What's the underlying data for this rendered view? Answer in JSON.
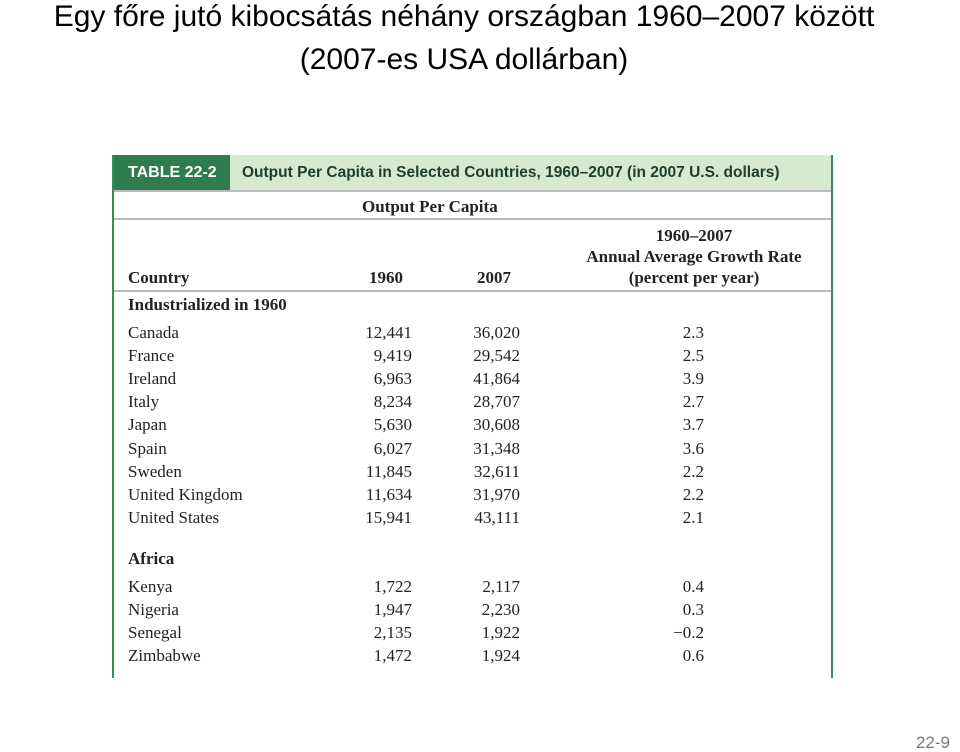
{
  "slide": {
    "title": [
      "Egy főre jutó kibocsátás néhány országban 1960–2007 között",
      "(2007-es USA dollárban)"
    ],
    "page_number": "22-9"
  },
  "table": {
    "label": "TABLE 22-2",
    "caption": "Output Per Capita in Selected Countries, 1960–2007 (in 2007 U.S. dollars)",
    "group_header": "Output Per Capita",
    "columns": [
      "Country",
      "1960",
      "2007",
      [
        "1960–2007",
        "Annual Average Growth Rate",
        "(percent per year)"
      ]
    ],
    "groups": [
      {
        "title": "Industrialized in 1960",
        "rows": [
          [
            "Canada",
            "12,441",
            "36,020",
            "2.3"
          ],
          [
            "France",
            "9,419",
            "29,542",
            "2.5"
          ],
          [
            "Ireland",
            "6,963",
            "41,864",
            "3.9"
          ],
          [
            "Italy",
            "8,234",
            "28,707",
            "2.7"
          ],
          [
            "Japan",
            "5,630",
            "30,608",
            "3.7"
          ],
          [
            "Spain",
            "6,027",
            "31,348",
            "3.6"
          ],
          [
            "Sweden",
            "11,845",
            "32,611",
            "2.2"
          ],
          [
            "United Kingdom",
            "11,634",
            "31,970",
            "2.2"
          ],
          [
            "United States",
            "15,941",
            "43,111",
            "2.1"
          ]
        ]
      },
      {
        "title": "Africa",
        "rows": [
          [
            "Kenya",
            "1,722",
            "2,117",
            "0.4"
          ],
          [
            "Nigeria",
            "1,947",
            "2,230",
            "0.3"
          ],
          [
            "Senegal",
            "2,135",
            "1,922",
            "−0.2"
          ],
          [
            "Zimbabwe",
            "1,472",
            "1,924",
            "0.6"
          ]
        ]
      }
    ]
  }
}
